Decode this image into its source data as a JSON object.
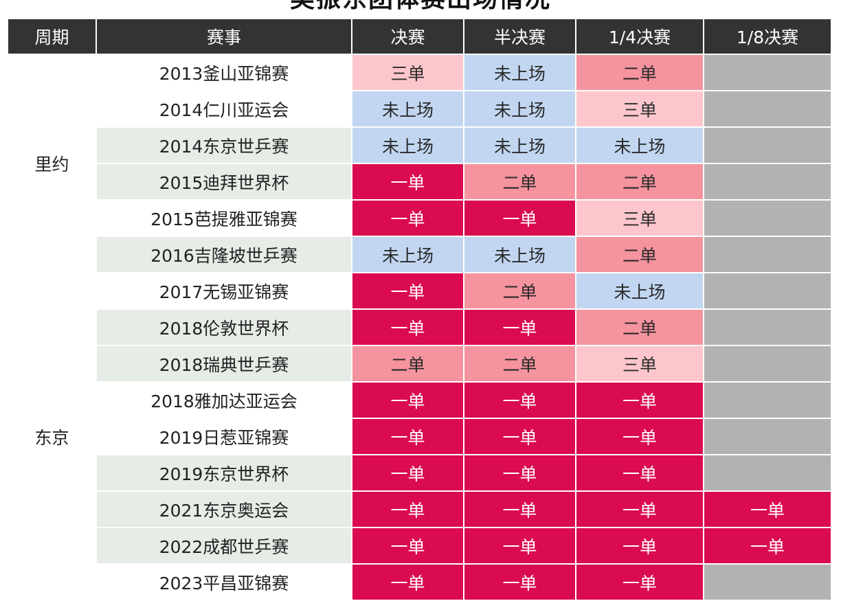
{
  "title": "樊振东团体赛出场情况",
  "headers": [
    "周期",
    "赛事",
    "决赛",
    "半决赛",
    "1/4决赛",
    "1/8决赛"
  ],
  "periods": [
    "里约",
    "东京"
  ],
  "legend_colors": {
    "一单": "#db0b4f",
    "二单": "#f5939e",
    "三单": "#fdc6cc",
    "未上场": "#c2d6f1",
    "none": "#b2b2b2"
  },
  "rows": [
    {
      "event": "2013釜山亚锦赛",
      "cells": [
        "三单",
        "未上场",
        "二单",
        ""
      ]
    },
    {
      "event": "2014仁川亚运会",
      "cells": [
        "未上场",
        "未上场",
        "三单",
        ""
      ]
    },
    {
      "event": "2014东京世乒赛",
      "cells": [
        "未上场",
        "未上场",
        "未上场",
        ""
      ]
    },
    {
      "event": "2015迪拜世界杯",
      "cells": [
        "一单",
        "二单",
        "二单",
        ""
      ]
    },
    {
      "event": "2015芭提雅亚锦赛",
      "cells": [
        "一单",
        "一单",
        "三单",
        ""
      ]
    },
    {
      "event": "2016吉隆坡世乒赛",
      "cells": [
        "未上场",
        "未上场",
        "二单",
        ""
      ]
    },
    {
      "event": "2017无锡亚锦赛",
      "cells": [
        "一单",
        "二单",
        "未上场",
        ""
      ]
    },
    {
      "event": "2018伦敦世界杯",
      "cells": [
        "一单",
        "一单",
        "二单",
        ""
      ]
    },
    {
      "event": "2018瑞典世乒赛",
      "cells": [
        "二单",
        "二单",
        "三单",
        ""
      ]
    },
    {
      "event": "2018雅加达亚运会",
      "cells": [
        "一单",
        "一单",
        "一单",
        ""
      ]
    },
    {
      "event": "2019日惹亚锦赛",
      "cells": [
        "一单",
        "一单",
        "一单",
        ""
      ]
    },
    {
      "event": "2019东京世界杯",
      "cells": [
        "一单",
        "一单",
        "一单",
        ""
      ]
    },
    {
      "event": "2021东京奥运会",
      "cells": [
        "一单",
        "一单",
        "一单",
        "一单"
      ]
    },
    {
      "event": "2022成都世乒赛",
      "cells": [
        "一单",
        "一单",
        "一单",
        "一单"
      ]
    },
    {
      "event": "2023平昌亚锦赛",
      "cells": [
        "一单",
        "一单",
        "一单",
        ""
      ]
    }
  ]
}
